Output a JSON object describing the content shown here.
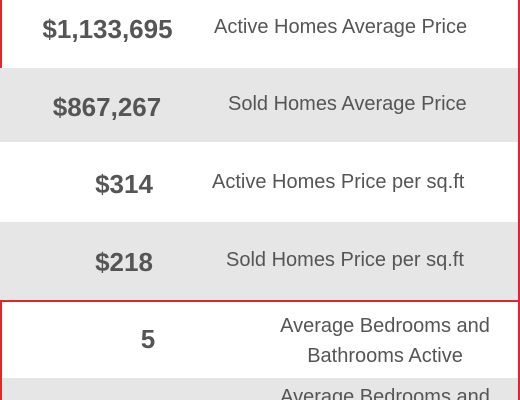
{
  "rows": [
    {
      "value": "$1,133,695",
      "label": "Active Homes Average Price"
    },
    {
      "value": "$867,267",
      "label": "Sold Homes Average Price"
    },
    {
      "value": "$314",
      "label": "Active Homes Price per sq.ft"
    },
    {
      "value": "$218",
      "label": "Sold Homes Price per sq.ft"
    },
    {
      "value": "5",
      "label_line1": "Average Bedrooms and",
      "label_line2": "Bathrooms Active"
    },
    {
      "label_line1": "Average Bedrooms and"
    }
  ],
  "colors": {
    "border": "#e3262b",
    "row_alt": "#e6e6e6",
    "text": "#555555"
  }
}
